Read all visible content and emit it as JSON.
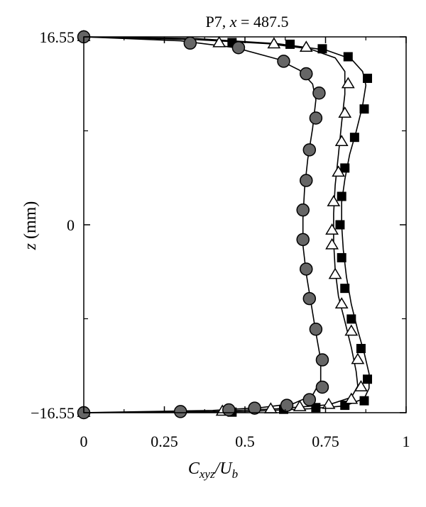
{
  "chart_data": {
    "type": "line",
    "title": {
      "prefix": "P7, ",
      "var": "x",
      "rest": " = 487.5"
    },
    "xlabel": {
      "main": "C",
      "sub1": "xyz",
      "slash": "/U",
      "sub2": "b"
    },
    "ylabel": {
      "var": "z",
      "unit": " (mm)"
    },
    "xlim": [
      0,
      1
    ],
    "ylim": [
      -16.55,
      16.55
    ],
    "x_ticks": [
      0,
      0.25,
      0.5,
      0.75,
      1
    ],
    "x_tick_labels": [
      "0",
      "0.25",
      "0.5",
      "0.75",
      "1"
    ],
    "y_ticks": [
      -16.55,
      0,
      16.55
    ],
    "y_tick_labels": [
      "−16.55",
      "0",
      "16.55"
    ],
    "grid": false,
    "series": [
      {
        "marker": "square-filled",
        "points": [
          [
            0,
            16.55
          ],
          [
            0.46,
            16.05
          ],
          [
            0.64,
            15.9
          ],
          [
            0.74,
            15.5
          ],
          [
            0.82,
            14.8
          ],
          [
            0.88,
            12.9
          ],
          [
            0.87,
            10.2
          ],
          [
            0.84,
            7.7
          ],
          [
            0.81,
            5.0
          ],
          [
            0.8,
            2.5
          ],
          [
            0.795,
            0
          ],
          [
            0.8,
            -2.9
          ],
          [
            0.81,
            -5.6
          ],
          [
            0.83,
            -8.3
          ],
          [
            0.86,
            -10.9
          ],
          [
            0.88,
            -13.6
          ],
          [
            0.87,
            -15.5
          ],
          [
            0.81,
            -15.9
          ],
          [
            0.72,
            -16.1
          ],
          [
            0.62,
            -16.25
          ],
          [
            0.46,
            -16.5
          ],
          [
            0,
            -16.55
          ]
        ],
        "line": [
          [
            0,
            16.55
          ],
          [
            0.35,
            16.4
          ],
          [
            0.6,
            15.95
          ],
          [
            0.75,
            15.4
          ],
          [
            0.83,
            14.6
          ],
          [
            0.865,
            13.5
          ],
          [
            0.875,
            12.3
          ],
          [
            0.865,
            10.5
          ],
          [
            0.845,
            8.2
          ],
          [
            0.825,
            6.2
          ],
          [
            0.81,
            4.0
          ],
          [
            0.8,
            2.0
          ],
          [
            0.8,
            0
          ],
          [
            0.805,
            -2.2
          ],
          [
            0.815,
            -4.6
          ],
          [
            0.83,
            -7.0
          ],
          [
            0.85,
            -9.3
          ],
          [
            0.87,
            -11.3
          ],
          [
            0.885,
            -13.1
          ],
          [
            0.885,
            -14.4
          ],
          [
            0.87,
            -15.3
          ],
          [
            0.81,
            -15.95
          ],
          [
            0.7,
            -16.2
          ],
          [
            0.5,
            -16.45
          ],
          [
            0,
            -16.55
          ]
        ]
      },
      {
        "marker": "triangle-open",
        "points": [
          [
            0,
            16.55
          ],
          [
            0.42,
            16.0
          ],
          [
            0.59,
            15.9
          ],
          [
            0.69,
            15.6
          ],
          [
            0.82,
            12.4
          ],
          [
            0.81,
            9.8
          ],
          [
            0.8,
            7.3
          ],
          [
            0.79,
            4.6
          ],
          [
            0.775,
            2.0
          ],
          [
            0.77,
            -0.5
          ],
          [
            0.77,
            -1.8
          ],
          [
            0.78,
            -4.4
          ],
          [
            0.8,
            -7.0
          ],
          [
            0.83,
            -9.4
          ],
          [
            0.85,
            -11.9
          ],
          [
            0.86,
            -14.3
          ],
          [
            0.83,
            -15.4
          ],
          [
            0.76,
            -15.85
          ],
          [
            0.67,
            -16.05
          ],
          [
            0.58,
            -16.25
          ],
          [
            0.43,
            -16.45
          ],
          [
            0,
            -16.55
          ]
        ],
        "line": [
          [
            0,
            16.55
          ],
          [
            0.35,
            16.3
          ],
          [
            0.57,
            15.95
          ],
          [
            0.7,
            15.5
          ],
          [
            0.78,
            14.7
          ],
          [
            0.81,
            13.5
          ],
          [
            0.81,
            11.5
          ],
          [
            0.8,
            9.0
          ],
          [
            0.79,
            6.2
          ],
          [
            0.78,
            3.5
          ],
          [
            0.775,
            1.0
          ],
          [
            0.775,
            -1.5
          ],
          [
            0.78,
            -4.0
          ],
          [
            0.79,
            -6.3
          ],
          [
            0.81,
            -8.5
          ],
          [
            0.83,
            -10.8
          ],
          [
            0.845,
            -12.9
          ],
          [
            0.85,
            -14.2
          ],
          [
            0.83,
            -15.2
          ],
          [
            0.76,
            -15.85
          ],
          [
            0.6,
            -16.2
          ],
          [
            0.4,
            -16.45
          ],
          [
            0,
            -16.55
          ]
        ]
      },
      {
        "marker": "circle-filled",
        "points": [
          [
            0,
            16.55
          ],
          [
            0.33,
            16.0
          ],
          [
            0.48,
            15.6
          ],
          [
            0.62,
            14.4
          ],
          [
            0.69,
            13.3
          ],
          [
            0.73,
            11.6
          ],
          [
            0.72,
            9.4
          ],
          [
            0.7,
            6.6
          ],
          [
            0.69,
            3.9
          ],
          [
            0.68,
            1.3
          ],
          [
            0.68,
            -1.3
          ],
          [
            0.69,
            -3.9
          ],
          [
            0.7,
            -6.5
          ],
          [
            0.72,
            -9.2
          ],
          [
            0.74,
            -11.9
          ],
          [
            0.74,
            -14.3
          ],
          [
            0.7,
            -15.4
          ],
          [
            0.63,
            -15.9
          ],
          [
            0.53,
            -16.15
          ],
          [
            0.45,
            -16.3
          ],
          [
            0.3,
            -16.45
          ],
          [
            0,
            -16.55
          ]
        ],
        "line": [
          [
            0,
            16.55
          ],
          [
            0.3,
            16.2
          ],
          [
            0.47,
            15.6
          ],
          [
            0.6,
            14.6
          ],
          [
            0.67,
            13.6
          ],
          [
            0.71,
            12.4
          ],
          [
            0.72,
            11.0
          ],
          [
            0.71,
            8.5
          ],
          [
            0.695,
            5.8
          ],
          [
            0.685,
            3.2
          ],
          [
            0.68,
            0.6
          ],
          [
            0.68,
            -1.8
          ],
          [
            0.69,
            -4.3
          ],
          [
            0.705,
            -6.9
          ],
          [
            0.72,
            -9.5
          ],
          [
            0.735,
            -11.9
          ],
          [
            0.735,
            -13.7
          ],
          [
            0.71,
            -15.0
          ],
          [
            0.65,
            -15.75
          ],
          [
            0.55,
            -16.1
          ],
          [
            0.4,
            -16.35
          ],
          [
            0,
            -16.55
          ]
        ]
      }
    ]
  }
}
